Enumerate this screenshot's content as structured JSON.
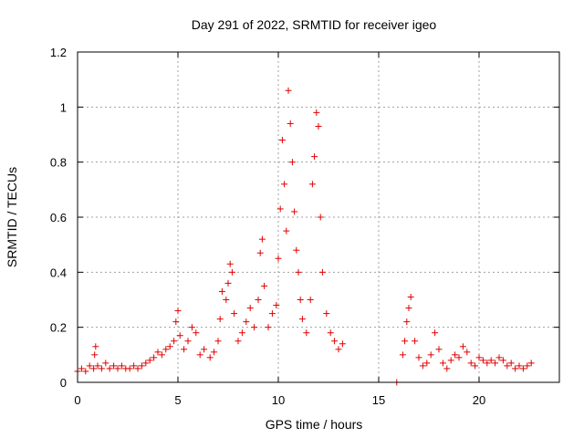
{
  "chart_data": {
    "type": "scatter",
    "title": "Day 291 of 2022, SRMTID for receiver igeo",
    "xlabel": "GPS time / hours",
    "ylabel": "SRMTID / TECUs",
    "xlim": [
      0,
      24
    ],
    "ylim": [
      0,
      1.2
    ],
    "x_ticks": [
      0,
      5,
      10,
      15,
      20
    ],
    "y_ticks": [
      0,
      0.2,
      0.4,
      0.6,
      0.8,
      1,
      1.2
    ],
    "x_tick_labels": [
      "0",
      "5",
      "10",
      "15",
      "20"
    ],
    "y_tick_labels": [
      "0",
      "0.2",
      "0.4",
      "0.6",
      "0.8",
      "1",
      "1.2"
    ],
    "grid": true,
    "marker": "plus",
    "color": "#e00000",
    "series": [
      {
        "name": "SRMTID",
        "points": [
          [
            0.0,
            0.04
          ],
          [
            0.2,
            0.05
          ],
          [
            0.4,
            0.04
          ],
          [
            0.6,
            0.06
          ],
          [
            0.8,
            0.05
          ],
          [
            0.85,
            0.1
          ],
          [
            0.9,
            0.13
          ],
          [
            1.0,
            0.06
          ],
          [
            1.2,
            0.05
          ],
          [
            1.4,
            0.07
          ],
          [
            1.6,
            0.05
          ],
          [
            1.8,
            0.06
          ],
          [
            2.0,
            0.05
          ],
          [
            2.2,
            0.06
          ],
          [
            2.4,
            0.05
          ],
          [
            2.6,
            0.05
          ],
          [
            2.8,
            0.06
          ],
          [
            3.0,
            0.05
          ],
          [
            3.2,
            0.06
          ],
          [
            3.4,
            0.07
          ],
          [
            3.6,
            0.08
          ],
          [
            3.8,
            0.09
          ],
          [
            4.0,
            0.11
          ],
          [
            4.2,
            0.1
          ],
          [
            4.4,
            0.12
          ],
          [
            4.6,
            0.13
          ],
          [
            4.8,
            0.15
          ],
          [
            4.9,
            0.22
          ],
          [
            5.0,
            0.26
          ],
          [
            5.1,
            0.17
          ],
          [
            5.3,
            0.12
          ],
          [
            5.5,
            0.15
          ],
          [
            5.7,
            0.2
          ],
          [
            5.9,
            0.18
          ],
          [
            6.1,
            0.1
          ],
          [
            6.3,
            0.12
          ],
          [
            6.6,
            0.09
          ],
          [
            6.8,
            0.11
          ],
          [
            7.0,
            0.15
          ],
          [
            7.1,
            0.23
          ],
          [
            7.2,
            0.33
          ],
          [
            7.4,
            0.3
          ],
          [
            7.5,
            0.36
          ],
          [
            7.6,
            0.43
          ],
          [
            7.7,
            0.4
          ],
          [
            7.8,
            0.25
          ],
          [
            8.0,
            0.15
          ],
          [
            8.2,
            0.18
          ],
          [
            8.4,
            0.22
          ],
          [
            8.6,
            0.27
          ],
          [
            8.8,
            0.2
          ],
          [
            9.0,
            0.3
          ],
          [
            9.1,
            0.47
          ],
          [
            9.2,
            0.52
          ],
          [
            9.3,
            0.35
          ],
          [
            9.5,
            0.2
          ],
          [
            9.7,
            0.25
          ],
          [
            9.9,
            0.28
          ],
          [
            10.0,
            0.45
          ],
          [
            10.1,
            0.63
          ],
          [
            10.2,
            0.88
          ],
          [
            10.3,
            0.72
          ],
          [
            10.4,
            0.55
          ],
          [
            10.5,
            1.06
          ],
          [
            10.6,
            0.94
          ],
          [
            10.7,
            0.8
          ],
          [
            10.8,
            0.62
          ],
          [
            10.9,
            0.48
          ],
          [
            11.0,
            0.4
          ],
          [
            11.1,
            0.3
          ],
          [
            11.2,
            0.23
          ],
          [
            11.4,
            0.18
          ],
          [
            11.6,
            0.3
          ],
          [
            11.7,
            0.72
          ],
          [
            11.8,
            0.82
          ],
          [
            11.9,
            0.98
          ],
          [
            12.0,
            0.93
          ],
          [
            12.1,
            0.6
          ],
          [
            12.2,
            0.4
          ],
          [
            12.4,
            0.25
          ],
          [
            12.6,
            0.18
          ],
          [
            12.8,
            0.15
          ],
          [
            13.0,
            0.12
          ],
          [
            13.2,
            0.14
          ],
          [
            15.9,
            0.0
          ],
          [
            16.2,
            0.1
          ],
          [
            16.3,
            0.15
          ],
          [
            16.4,
            0.22
          ],
          [
            16.5,
            0.27
          ],
          [
            16.6,
            0.31
          ],
          [
            16.8,
            0.15
          ],
          [
            17.0,
            0.09
          ],
          [
            17.2,
            0.06
          ],
          [
            17.4,
            0.07
          ],
          [
            17.6,
            0.1
          ],
          [
            17.8,
            0.18
          ],
          [
            18.0,
            0.12
          ],
          [
            18.2,
            0.07
          ],
          [
            18.4,
            0.05
          ],
          [
            18.6,
            0.08
          ],
          [
            18.8,
            0.1
          ],
          [
            19.0,
            0.09
          ],
          [
            19.2,
            0.13
          ],
          [
            19.4,
            0.11
          ],
          [
            19.6,
            0.07
          ],
          [
            19.8,
            0.06
          ],
          [
            20.0,
            0.09
          ],
          [
            20.2,
            0.08
          ],
          [
            20.4,
            0.07
          ],
          [
            20.6,
            0.08
          ],
          [
            20.8,
            0.07
          ],
          [
            21.0,
            0.09
          ],
          [
            21.2,
            0.08
          ],
          [
            21.4,
            0.06
          ],
          [
            21.6,
            0.07
          ],
          [
            21.8,
            0.05
          ],
          [
            22.0,
            0.06
          ],
          [
            22.2,
            0.05
          ],
          [
            22.4,
            0.06
          ],
          [
            22.6,
            0.07
          ]
        ]
      }
    ]
  }
}
